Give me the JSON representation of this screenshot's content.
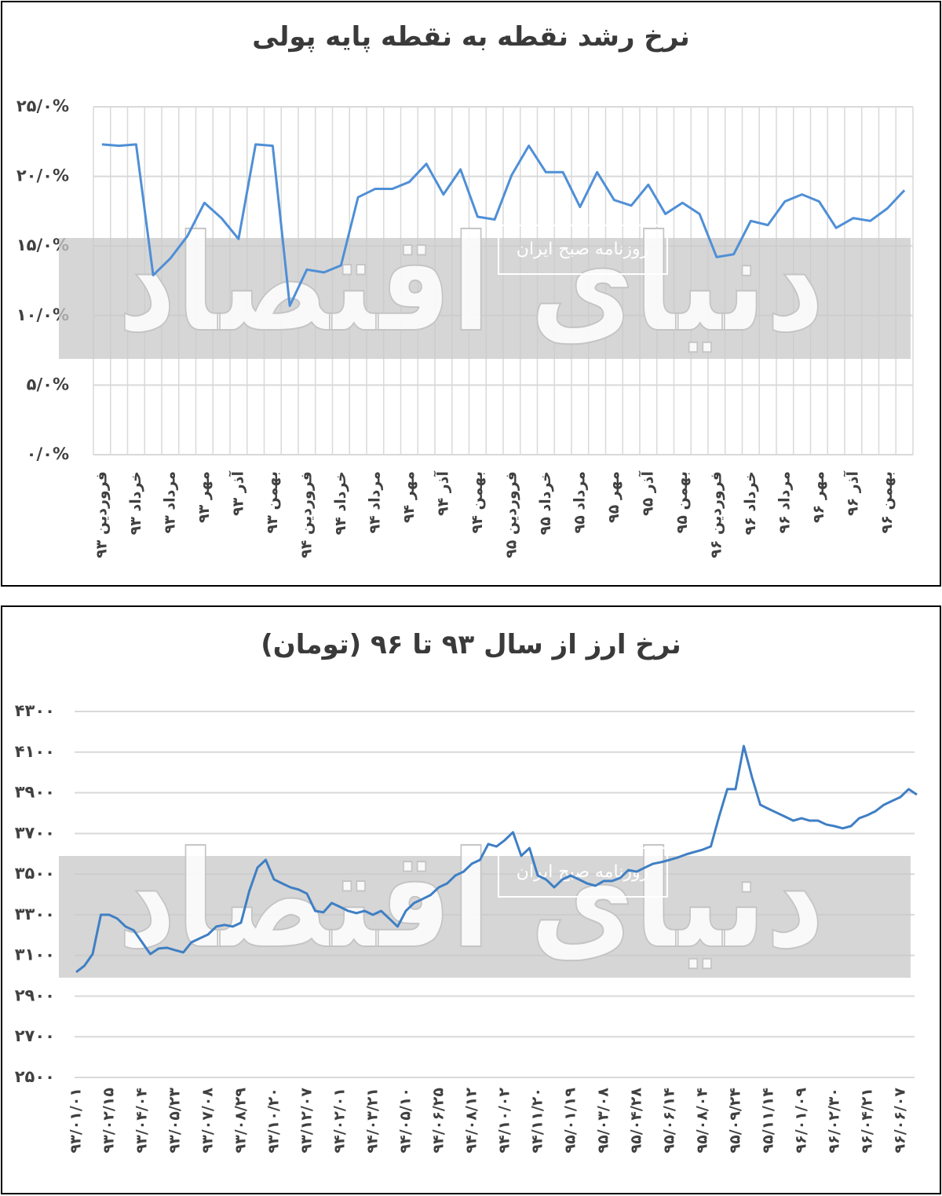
{
  "chart_data": [
    {
      "type": "line",
      "title": "نرخ رشد نقطه به نقطه پایه پولی",
      "color": "#4f8fd6",
      "grid": true,
      "watermark": {
        "name": "دنیای اقتصاد",
        "tagline": "روزنامه صبح ایران"
      },
      "ylim": [
        0,
        25
      ],
      "yticks": [
        {
          "value": 0,
          "label": "۰/۰%"
        },
        {
          "value": 5,
          "label": "۵/۰%"
        },
        {
          "value": 10,
          "label": "۱۰/۰%"
        },
        {
          "value": 15,
          "label": "۱۵/۰%"
        },
        {
          "value": 20,
          "label": "۲۰/۰%"
        },
        {
          "value": 25,
          "label": "۲۵/۰%"
        }
      ],
      "categories": [
        "فروردین ۹۳",
        null,
        "خرداد ۹۳",
        null,
        "مرداد ۹۳",
        null,
        "مهر ۹۳",
        null,
        "آذر ۹۳",
        null,
        "بهمن ۹۳",
        null,
        "فروردین ۹۴",
        null,
        "خرداد ۹۴",
        null,
        "مرداد ۹۴",
        null,
        "مهر ۹۴",
        null,
        "آذر ۹۴",
        null,
        "بهمن ۹۴",
        null,
        "فروردین ۹۵",
        null,
        "خرداد ۹۵",
        null,
        "مرداد ۹۵",
        null,
        "مهر ۹۵",
        null,
        "آذر ۹۵",
        null,
        "بهمن ۹۵",
        null,
        "فروردین ۹۶",
        null,
        "خرداد ۹۶",
        null,
        "مرداد ۹۶",
        null,
        "مهر ۹۶",
        null,
        "آذر ۹۶",
        null,
        "بهمن ۹۶",
        null
      ],
      "values": [
        22.3,
        22.2,
        22.3,
        12.9,
        14.1,
        15.7,
        18.1,
        17.0,
        15.5,
        22.3,
        22.2,
        10.7,
        13.3,
        13.1,
        13.6,
        18.5,
        19.1,
        19.1,
        19.6,
        20.9,
        18.7,
        20.5,
        17.1,
        16.9,
        20.1,
        22.2,
        20.3,
        20.3,
        17.8,
        20.3,
        18.3,
        17.9,
        19.4,
        17.3,
        18.1,
        17.3,
        14.2,
        14.4,
        16.8,
        16.5,
        18.2,
        18.7,
        18.2,
        16.3,
        17.0,
        16.8,
        17.7,
        19.0
      ]
    },
    {
      "type": "line",
      "title": "نرخ ارز از سال ۹۳ تا ۹۶ (تومان)",
      "color": "#3f7fc4",
      "grid": true,
      "watermark": {
        "name": "دنیای اقتصاد",
        "tagline": "روزنامه صبح ایران"
      },
      "ylim": [
        2500,
        4300
      ],
      "yticks": [
        {
          "value": 2500,
          "label": "۲۵۰۰"
        },
        {
          "value": 2700,
          "label": "۲۷۰۰"
        },
        {
          "value": 2900,
          "label": "۲۹۰۰"
        },
        {
          "value": 3100,
          "label": "۳۱۰۰"
        },
        {
          "value": 3300,
          "label": "۳۳۰۰"
        },
        {
          "value": 3500,
          "label": "۳۵۰۰"
        },
        {
          "value": 3700,
          "label": "۳۷۰۰"
        },
        {
          "value": 3900,
          "label": "۳۹۰۰"
        },
        {
          "value": 4100,
          "label": "۴۱۰۰"
        },
        {
          "value": 4300,
          "label": "۴۳۰۰"
        }
      ],
      "categories": [
        "۹۳/۰۱/۰۱",
        null,
        null,
        null,
        "۹۳/۰۲/۱۵",
        null,
        null,
        null,
        "۹۳/۰۴/۰۴",
        null,
        null,
        null,
        "۹۳/۰۵/۲۳",
        null,
        null,
        null,
        "۹۳/۰۷/۰۸",
        null,
        null,
        null,
        "۹۳/۰۸/۲۹",
        null,
        null,
        null,
        "۹۳/۱۰/۲۰",
        null,
        null,
        null,
        "۹۳/۱۲/۰۷",
        null,
        null,
        null,
        "۹۴/۰۲/۰۱",
        null,
        null,
        null,
        "۹۴/۰۳/۲۱",
        null,
        null,
        null,
        "۹۴/۰۵/۱۰",
        null,
        null,
        null,
        "۹۴/۰۶/۲۵",
        null,
        null,
        null,
        "۹۴/۰۸/۱۲",
        null,
        null,
        null,
        "۹۴/۱۰/۰۲",
        null,
        null,
        null,
        "۹۴/۱۱/۲۰",
        null,
        null,
        null,
        "۹۵/۰۱/۱۹",
        null,
        null,
        null,
        "۹۵/۰۳/۰۸",
        null,
        null,
        null,
        "۹۵/۰۴/۲۸",
        null,
        null,
        null,
        "۹۵/۰۶/۱۴",
        null,
        null,
        null,
        "۹۵/۰۸/۰۴",
        null,
        null,
        null,
        "۹۵/۰۹/۲۴",
        null,
        null,
        null,
        "۹۵/۱۱/۱۴",
        null,
        null,
        null,
        "۹۶/۰۱/۰۹",
        null,
        null,
        null,
        "۹۶/۰۲/۳۰",
        null,
        null,
        null,
        "۹۶/۰۴/۲۱",
        null,
        null,
        null,
        "۹۶/۰۶/۰۷",
        null,
        null
      ],
      "values": [
        3018,
        3049,
        3107,
        3300,
        3300,
        3281,
        3242,
        3223,
        3165,
        3107,
        3134,
        3138,
        3126,
        3115,
        3165,
        3184,
        3203,
        3242,
        3250,
        3242,
        3261,
        3416,
        3532,
        3570,
        3474,
        3454,
        3435,
        3424,
        3404,
        3319,
        3312,
        3358,
        3339,
        3319,
        3308,
        3319,
        3300,
        3319,
        3281,
        3242,
        3319,
        3358,
        3377,
        3397,
        3435,
        3454,
        3493,
        3512,
        3551,
        3570,
        3648,
        3636,
        3667,
        3706,
        3590,
        3628,
        3493,
        3474,
        3435,
        3474,
        3493,
        3474,
        3454,
        3443,
        3466,
        3466,
        3481,
        3520,
        3512,
        3532,
        3551,
        3559,
        3570,
        3582,
        3597,
        3609,
        3620,
        3636,
        3783,
        3918,
        3918,
        4130,
        3976,
        3841,
        3821,
        3802,
        3783,
        3763,
        3775,
        3763,
        3763,
        3744,
        3736,
        3725,
        3736,
        3775,
        3790,
        3810,
        3841,
        3860,
        3879,
        3918,
        3891
      ]
    }
  ]
}
